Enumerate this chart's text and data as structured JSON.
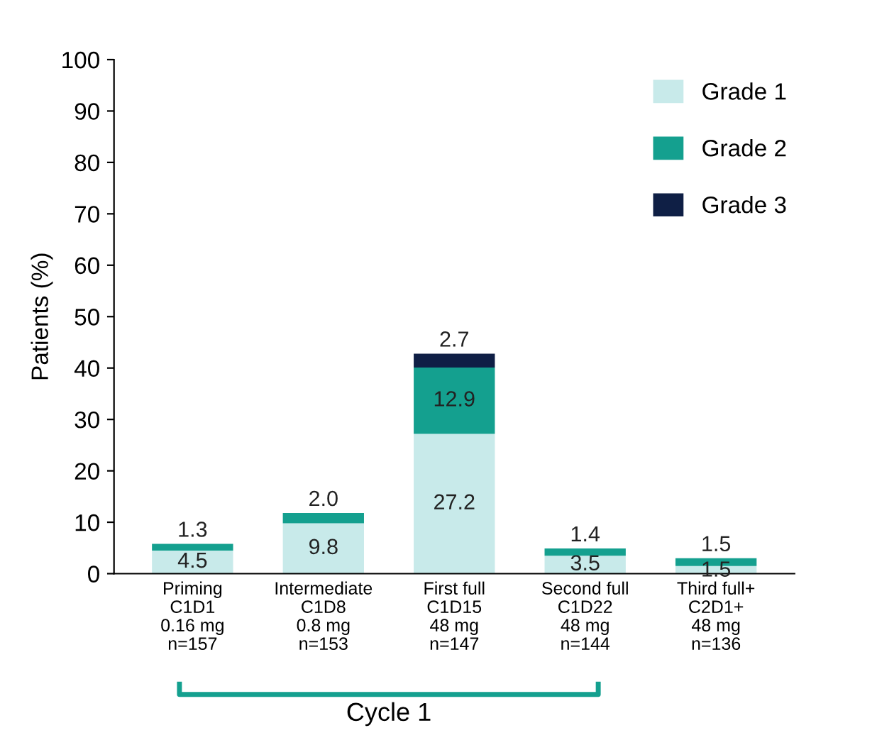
{
  "chart_data": {
    "type": "bar",
    "stacked": true,
    "categories": [
      "Priming\nC1D1\n0.16 mg\nn=157",
      "Intermediate\nC1D8\n0.8 mg\nn=153",
      "First full\nC1D15\n48 mg\nn=147",
      "Second full\nC1D22\n48 mg\nn=144",
      "Third full+\nC2D1+\n48 mg\nn=136"
    ],
    "ylabel": "Patients (%)",
    "series": [
      {
        "name": "Grade 1",
        "color": "#c8eaea",
        "values": [
          4.5,
          9.8,
          27.2,
          3.5,
          1.5
        ],
        "value_labels": [
          "4.5",
          "9.8",
          "27.2",
          "3.5",
          "1.5"
        ]
      },
      {
        "name": "Grade 2",
        "color": "#14a08f",
        "values": [
          1.3,
          2.0,
          12.9,
          1.4,
          1.5
        ],
        "value_labels": [
          "1.3",
          "2.0",
          "12.9",
          "1.4",
          "1.5"
        ]
      },
      {
        "name": "Grade 3",
        "color": "#0f1f45",
        "values": [
          null,
          null,
          2.7,
          null,
          null
        ],
        "value_labels": [
          null,
          null,
          "2.7",
          null,
          null
        ]
      }
    ],
    "ylim": [
      0,
      100
    ],
    "yticks": [
      0,
      10,
      20,
      30,
      40,
      50,
      60,
      70,
      80,
      90,
      100
    ],
    "grid": false,
    "legend": "top right",
    "annotations": [
      "Cycle 1"
    ]
  }
}
